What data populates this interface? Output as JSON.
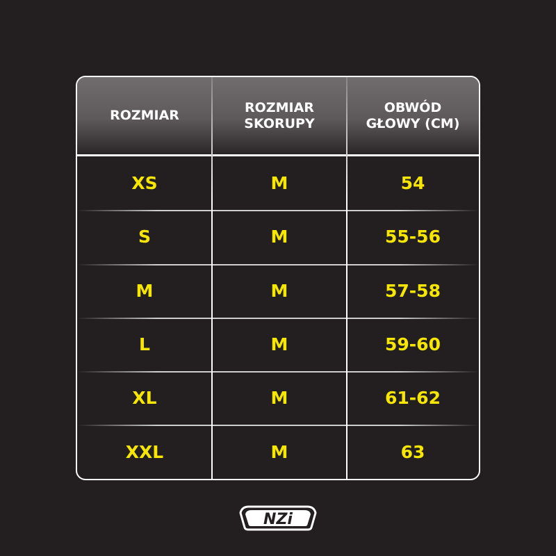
{
  "headers": [
    "ROZMIAR",
    "ROZMIAR\nSKORUPY",
    "OBWÓD\nGŁOWY (CM)"
  ],
  "rows": [
    [
      "XS",
      "M",
      "54"
    ],
    [
      "S",
      "M",
      "55-56"
    ],
    [
      "M",
      "M",
      "57-58"
    ],
    [
      "L",
      "M",
      "59-60"
    ],
    [
      "XL",
      "M",
      "61-62"
    ],
    [
      "XXL",
      "M",
      "63"
    ]
  ],
  "logo": "NZI",
  "colors": {
    "background": "#231f20",
    "value_text": "#f7e600",
    "header_text": "#ffffff"
  }
}
